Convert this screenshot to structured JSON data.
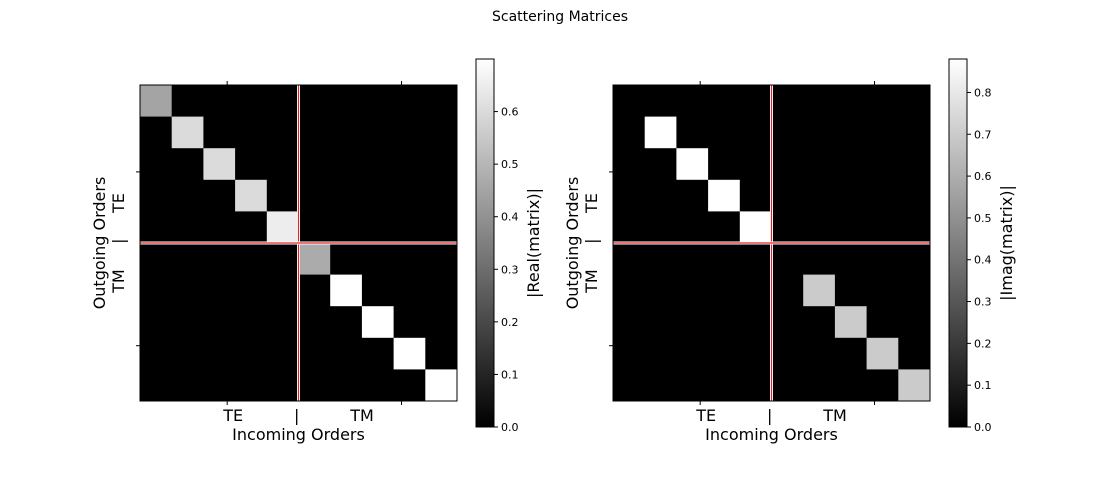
{
  "figure": {
    "title": "Scattering Matrices"
  },
  "chart_data": [
    {
      "type": "heatmap",
      "title": "",
      "xlabel": "TE          |          TM",
      "xlabel_line2": "Incoming Orders",
      "ylabel": "TM     |     TE",
      "ylabel_line2": "Outgoing Orders",
      "rows": 10,
      "cols": 10,
      "diagonal_values": [
        0.45,
        0.6,
        0.6,
        0.6,
        0.65,
        0.47,
        0.7,
        0.7,
        0.7,
        0.7
      ],
      "off_diagonal_value": 0,
      "divider_index": 5,
      "divider_color": "#d62728",
      "colormap": "gray",
      "colorbar": {
        "label": "|Real(matrix)|",
        "vmin": 0,
        "vmax": 0.7,
        "ticks": [
          "0.0",
          "0.1",
          "0.2",
          "0.3",
          "0.4",
          "0.5",
          "0.6"
        ]
      }
    },
    {
      "type": "heatmap",
      "title": "",
      "xlabel": "TE          |          TM",
      "xlabel_line2": "Incoming Orders",
      "ylabel": "TM     |     TE",
      "ylabel_line2": "Outgoing Orders",
      "rows": 10,
      "cols": 10,
      "diagonal_values": [
        0,
        0.88,
        0.88,
        0.88,
        0.88,
        0,
        0.7,
        0.7,
        0.7,
        0.7
      ],
      "off_diagonal_value": 0,
      "divider_index": 5,
      "divider_color": "#d62728",
      "colormap": "gray",
      "colorbar": {
        "label": "|Imag(matrix)|",
        "vmin": 0,
        "vmax": 0.88,
        "ticks": [
          "0.0",
          "0.1",
          "0.2",
          "0.3",
          "0.4",
          "0.5",
          "0.6",
          "0.7",
          "0.8"
        ]
      }
    }
  ]
}
